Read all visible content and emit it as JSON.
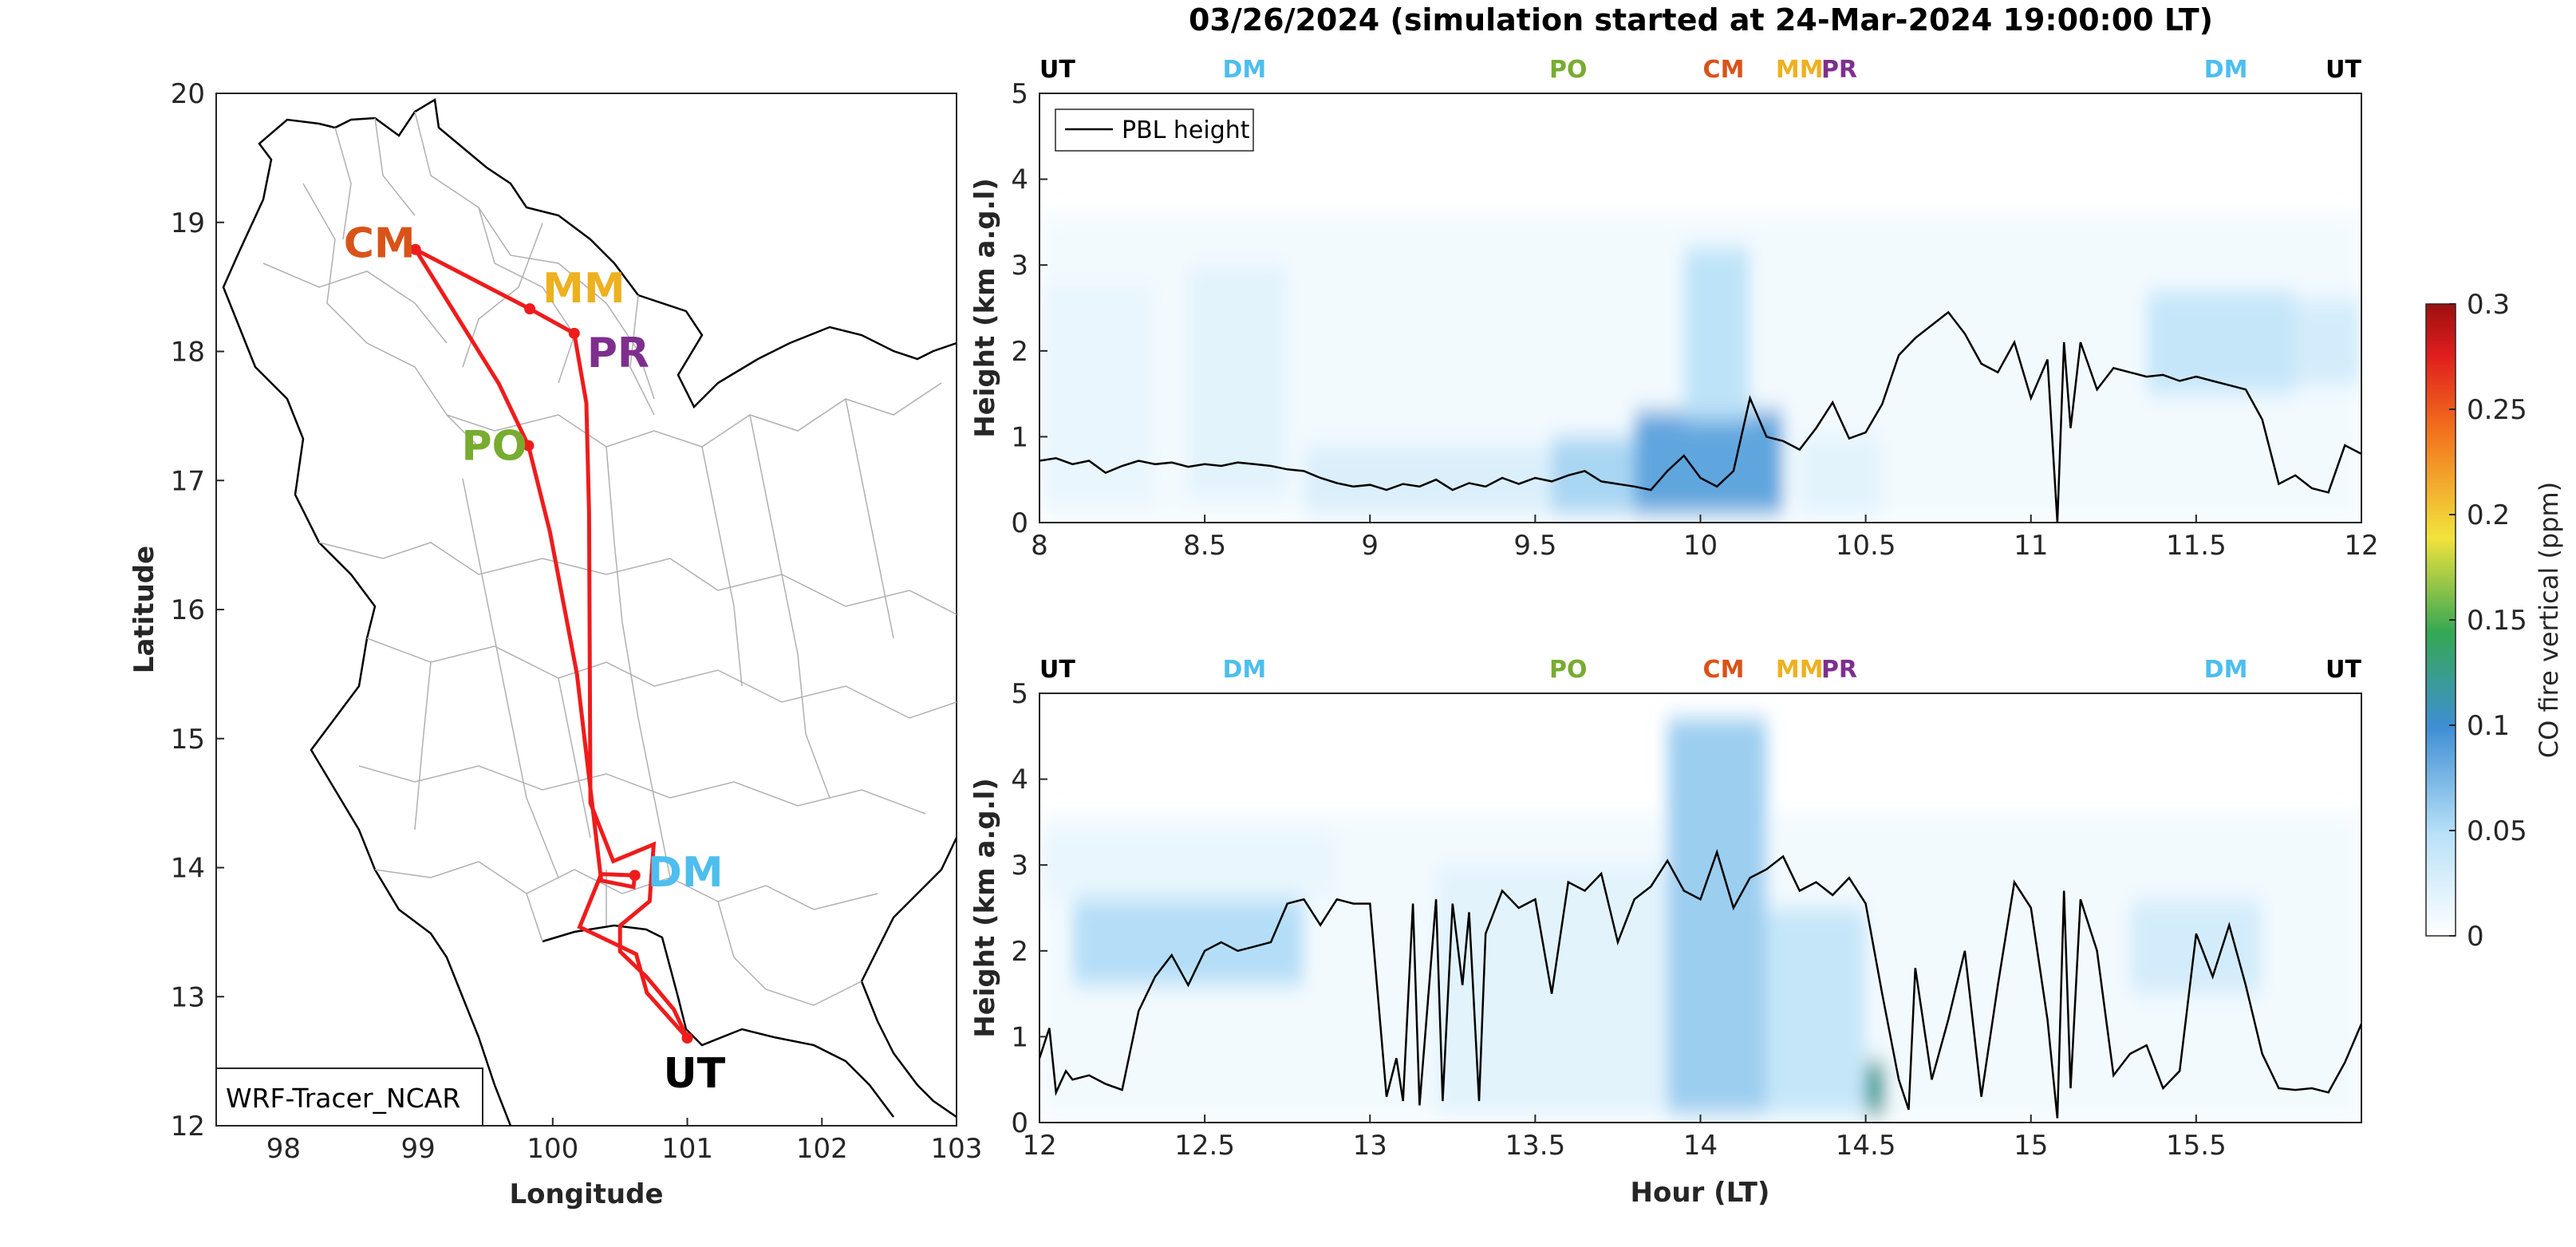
{
  "figure": {
    "title": "03/26/2024 (simulation started at 24-Mar-2024 19:00:00 LT)"
  },
  "map": {
    "xlabel": "Longitude",
    "ylabel": "Latitude",
    "xlim": [
      97.5,
      103
    ],
    "ylim": [
      12,
      20
    ],
    "xticks": [
      "98",
      "99",
      "100",
      "101",
      "102",
      "103"
    ],
    "yticks": [
      "12",
      "13",
      "14",
      "15",
      "16",
      "17",
      "18",
      "19",
      "20"
    ],
    "model_label": "WRF-Tracer_NCAR",
    "route_color": "#ee1c1c",
    "sites": [
      {
        "code": "CM",
        "lon": 98.98,
        "lat": 18.79,
        "color": "#d95319"
      },
      {
        "code": "MM",
        "lon": 99.83,
        "lat": 18.33,
        "color": "#edb120"
      },
      {
        "code": "PR",
        "lon": 100.16,
        "lat": 18.14,
        "color": "#7e2f8e"
      },
      {
        "code": "PO",
        "lon": 99.82,
        "lat": 17.27,
        "color": "#77ac30"
      },
      {
        "code": "DM",
        "lon": 100.61,
        "lat": 13.94,
        "color": "#4dbeee"
      },
      {
        "code": "UT",
        "lon": 101.0,
        "lat": 12.68,
        "color": "#000000"
      }
    ],
    "route": [
      [
        101.0,
        12.68
      ],
      [
        100.7,
        13.03
      ],
      [
        100.62,
        13.33
      ],
      [
        100.2,
        13.54
      ],
      [
        100.36,
        13.95
      ],
      [
        100.61,
        13.94
      ],
      [
        100.6,
        13.85
      ],
      [
        100.36,
        13.9
      ],
      [
        100.18,
        15.5
      ],
      [
        99.98,
        16.6
      ],
      [
        99.82,
        17.27
      ],
      [
        99.6,
        17.75
      ],
      [
        98.98,
        18.79
      ],
      [
        99.83,
        18.33
      ],
      [
        100.16,
        18.14
      ],
      [
        100.25,
        17.6
      ],
      [
        100.27,
        16.75
      ],
      [
        100.28,
        14.5
      ],
      [
        100.45,
        14.05
      ],
      [
        100.75,
        14.18
      ],
      [
        100.72,
        13.74
      ],
      [
        100.5,
        13.55
      ],
      [
        100.5,
        13.35
      ],
      [
        100.7,
        13.15
      ],
      [
        100.9,
        12.9
      ],
      [
        101.0,
        12.68
      ]
    ]
  },
  "colorbar": {
    "label": "CO fire vertical (ppm)",
    "ticks": [
      "0",
      "0.05",
      "0.1",
      "0.15",
      "0.2",
      "0.25",
      "0.3"
    ],
    "range": [
      0,
      0.3
    ]
  },
  "panels": {
    "top": {
      "ylabel": "Height (km a.g.l)",
      "xticks": [
        "8",
        "8.5",
        "9",
        "9.5",
        "10",
        "10.5",
        "11",
        "11.5",
        "12"
      ],
      "yticks": [
        "0",
        "1",
        "2",
        "3",
        "4",
        "5"
      ],
      "legend": "PBL height",
      "sites": [
        {
          "code": "UT",
          "color": "#000000",
          "x": 8.0
        },
        {
          "code": "DM",
          "color": "#4dbeee",
          "x": 8.62
        },
        {
          "code": "PO",
          "color": "#77ac30",
          "x": 9.6
        },
        {
          "code": "CM",
          "color": "#d95319",
          "x": 10.07
        },
        {
          "code": "MM",
          "color": "#edb120",
          "x": 10.3
        },
        {
          "code": "PR",
          "color": "#7e2f8e",
          "x": 10.42
        },
        {
          "code": "DM",
          "color": "#4dbeee",
          "x": 11.59
        },
        {
          "code": "UT",
          "color": "#000000",
          "x": 12.0
        }
      ]
    },
    "bottom": {
      "ylabel": "Height (km a.g.l)",
      "xlabel": "Hour (LT)",
      "xticks": [
        "12",
        "12.5",
        "13",
        "13.5",
        "14",
        "14.5",
        "15",
        "15.5"
      ],
      "yticks": [
        "0",
        "1",
        "2",
        "3",
        "4",
        "5"
      ],
      "sites": [
        {
          "code": "UT",
          "color": "#000000",
          "x": 12.0
        },
        {
          "code": "DM",
          "color": "#4dbeee",
          "x": 12.62
        },
        {
          "code": "PO",
          "color": "#77ac30",
          "x": 13.6
        },
        {
          "code": "CM",
          "color": "#d95319",
          "x": 14.07
        },
        {
          "code": "MM",
          "color": "#edb120",
          "x": 14.3
        },
        {
          "code": "PR",
          "color": "#7e2f8e",
          "x": 14.42
        },
        {
          "code": "DM",
          "color": "#4dbeee",
          "x": 15.59
        },
        {
          "code": "UT",
          "color": "#000000",
          "x": 16.0
        }
      ]
    }
  },
  "chart_data": [
    {
      "type": "heatmap",
      "title": "03/26/2024 (simulation started at 24-Mar-2024 19:00:00 LT)",
      "xlabel": "",
      "ylabel": "Height (km a.g.l)",
      "xlim": [
        8,
        12
      ],
      "ylim": [
        0,
        5
      ],
      "color_range": [
        0,
        0.3
      ],
      "colorbar_label": "CO fire vertical (ppm)",
      "plumes": [
        {
          "x0": 8.0,
          "x1": 8.35,
          "z0": 0.2,
          "z1": 2.8,
          "value": 0.015
        },
        {
          "x0": 8.45,
          "x1": 8.75,
          "z0": 0.3,
          "z1": 3.0,
          "value": 0.02
        },
        {
          "x0": 8.8,
          "x1": 9.55,
          "z0": 0.1,
          "z1": 0.9,
          "value": 0.025
        },
        {
          "x0": 9.55,
          "x1": 9.8,
          "z0": 0.1,
          "z1": 1.0,
          "value": 0.055
        },
        {
          "x0": 9.8,
          "x1": 10.25,
          "z0": 0.1,
          "z1": 1.3,
          "value": 0.085
        },
        {
          "x0": 9.95,
          "x1": 10.15,
          "z0": 1.2,
          "z1": 3.2,
          "value": 0.045
        },
        {
          "x0": 10.3,
          "x1": 10.55,
          "z0": 0.1,
          "z1": 1.0,
          "value": 0.02
        },
        {
          "x0": 11.35,
          "x1": 11.8,
          "z0": 1.5,
          "z1": 2.7,
          "value": 0.04
        },
        {
          "x0": 11.8,
          "x1": 12.0,
          "z0": 1.6,
          "z1": 2.6,
          "value": 0.03
        }
      ],
      "series": [
        {
          "name": "PBL height",
          "x": [
            8.0,
            8.05,
            8.1,
            8.15,
            8.2,
            8.25,
            8.3,
            8.35,
            8.4,
            8.45,
            8.5,
            8.55,
            8.6,
            8.65,
            8.7,
            8.75,
            8.8,
            8.85,
            8.9,
            8.95,
            9.0,
            9.05,
            9.1,
            9.15,
            9.2,
            9.25,
            9.3,
            9.35,
            9.4,
            9.45,
            9.5,
            9.55,
            9.6,
            9.65,
            9.7,
            9.75,
            9.8,
            9.85,
            9.9,
            9.95,
            10.0,
            10.05,
            10.1,
            10.15,
            10.2,
            10.25,
            10.3,
            10.35,
            10.4,
            10.45,
            10.5,
            10.55,
            10.6,
            10.65,
            10.7,
            10.75,
            10.8,
            10.85,
            10.9,
            10.95,
            11.0,
            11.05,
            11.08,
            11.1,
            11.12,
            11.15,
            11.2,
            11.25,
            11.3,
            11.35,
            11.4,
            11.45,
            11.5,
            11.55,
            11.6,
            11.65,
            11.7,
            11.75,
            11.8,
            11.85,
            11.9,
            11.95,
            12.0
          ],
          "y": [
            0.72,
            0.75,
            0.68,
            0.72,
            0.58,
            0.66,
            0.72,
            0.68,
            0.7,
            0.65,
            0.68,
            0.66,
            0.7,
            0.68,
            0.66,
            0.62,
            0.6,
            0.52,
            0.46,
            0.42,
            0.44,
            0.38,
            0.45,
            0.42,
            0.5,
            0.38,
            0.46,
            0.42,
            0.52,
            0.45,
            0.52,
            0.48,
            0.55,
            0.6,
            0.48,
            0.45,
            0.42,
            0.38,
            0.6,
            0.78,
            0.52,
            0.42,
            0.6,
            1.45,
            1.0,
            0.95,
            0.85,
            1.1,
            1.4,
            0.98,
            1.05,
            1.38,
            1.95,
            2.15,
            2.3,
            2.45,
            2.2,
            1.85,
            1.75,
            2.1,
            1.45,
            1.9,
            0.0,
            2.1,
            1.1,
            2.1,
            1.55,
            1.8,
            1.75,
            1.7,
            1.72,
            1.65,
            1.7,
            1.65,
            1.6,
            1.55,
            1.2,
            0.45,
            0.55,
            0.4,
            0.35,
            0.9,
            0.8
          ]
        }
      ]
    },
    {
      "type": "heatmap",
      "title": "",
      "xlabel": "Hour (LT)",
      "ylabel": "Height (km a.g.l)",
      "xlim": [
        12,
        16
      ],
      "ylim": [
        0,
        5
      ],
      "color_range": [
        0,
        0.3
      ],
      "colorbar_label": "CO fire vertical (ppm)",
      "plumes": [
        {
          "x0": 12.1,
          "x1": 12.8,
          "z0": 1.6,
          "z1": 2.6,
          "value": 0.05
        },
        {
          "x0": 12.0,
          "x1": 12.9,
          "z0": 2.6,
          "z1": 3.4,
          "value": 0.015
        },
        {
          "x0": 13.2,
          "x1": 13.9,
          "z0": 0.1,
          "z1": 3.0,
          "value": 0.02
        },
        {
          "x0": 13.9,
          "x1": 14.2,
          "z0": 0.1,
          "z1": 4.7,
          "value": 0.06
        },
        {
          "x0": 14.2,
          "x1": 14.5,
          "z0": 0.1,
          "z1": 2.5,
          "value": 0.04
        },
        {
          "x0": 14.5,
          "x1": 14.56,
          "z0": 0.1,
          "z1": 0.7,
          "value": 0.12
        },
        {
          "x0": 15.3,
          "x1": 15.7,
          "z0": 1.5,
          "z1": 2.6,
          "value": 0.03
        }
      ],
      "series": [
        {
          "name": "PBL height",
          "x": [
            12.0,
            12.03,
            12.05,
            12.08,
            12.1,
            12.15,
            12.2,
            12.25,
            12.3,
            12.35,
            12.4,
            12.45,
            12.5,
            12.55,
            12.6,
            12.65,
            12.7,
            12.75,
            12.8,
            12.85,
            12.9,
            12.95,
            13.0,
            13.05,
            13.08,
            13.1,
            13.13,
            13.15,
            13.2,
            13.22,
            13.25,
            13.28,
            13.3,
            13.33,
            13.35,
            13.4,
            13.45,
            13.5,
            13.55,
            13.6,
            13.65,
            13.7,
            13.75,
            13.8,
            13.85,
            13.9,
            13.95,
            14.0,
            14.05,
            14.1,
            14.15,
            14.2,
            14.25,
            14.3,
            14.35,
            14.4,
            14.45,
            14.5,
            14.55,
            14.6,
            14.63,
            14.65,
            14.7,
            14.75,
            14.8,
            14.85,
            14.9,
            14.95,
            15.0,
            15.05,
            15.08,
            15.1,
            15.12,
            15.15,
            15.2,
            15.25,
            15.3,
            15.35,
            15.4,
            15.45,
            15.5,
            15.55,
            15.6,
            15.65,
            15.7,
            15.75,
            15.8,
            15.85,
            15.9,
            15.95,
            16.0
          ],
          "y": [
            0.75,
            1.1,
            0.35,
            0.6,
            0.5,
            0.55,
            0.45,
            0.38,
            1.3,
            1.7,
            1.95,
            1.6,
            2.0,
            2.1,
            2.0,
            2.05,
            2.1,
            2.55,
            2.6,
            2.3,
            2.6,
            2.55,
            2.55,
            0.3,
            0.75,
            0.25,
            2.55,
            0.2,
            2.6,
            0.25,
            2.55,
            1.6,
            2.45,
            0.25,
            2.2,
            2.7,
            2.5,
            2.6,
            1.5,
            2.8,
            2.7,
            2.9,
            2.1,
            2.6,
            2.75,
            3.05,
            2.7,
            2.6,
            3.15,
            2.5,
            2.85,
            2.95,
            3.1,
            2.7,
            2.8,
            2.65,
            2.85,
            2.55,
            1.5,
            0.5,
            0.15,
            1.8,
            0.5,
            1.2,
            2.0,
            0.3,
            1.6,
            2.8,
            2.5,
            1.2,
            0.05,
            2.7,
            0.4,
            2.6,
            2.0,
            0.55,
            0.8,
            0.9,
            0.4,
            0.6,
            2.2,
            1.7,
            2.3,
            1.6,
            0.8,
            0.4,
            0.38,
            0.4,
            0.35,
            0.7,
            1.15
          ]
        }
      ]
    }
  ]
}
